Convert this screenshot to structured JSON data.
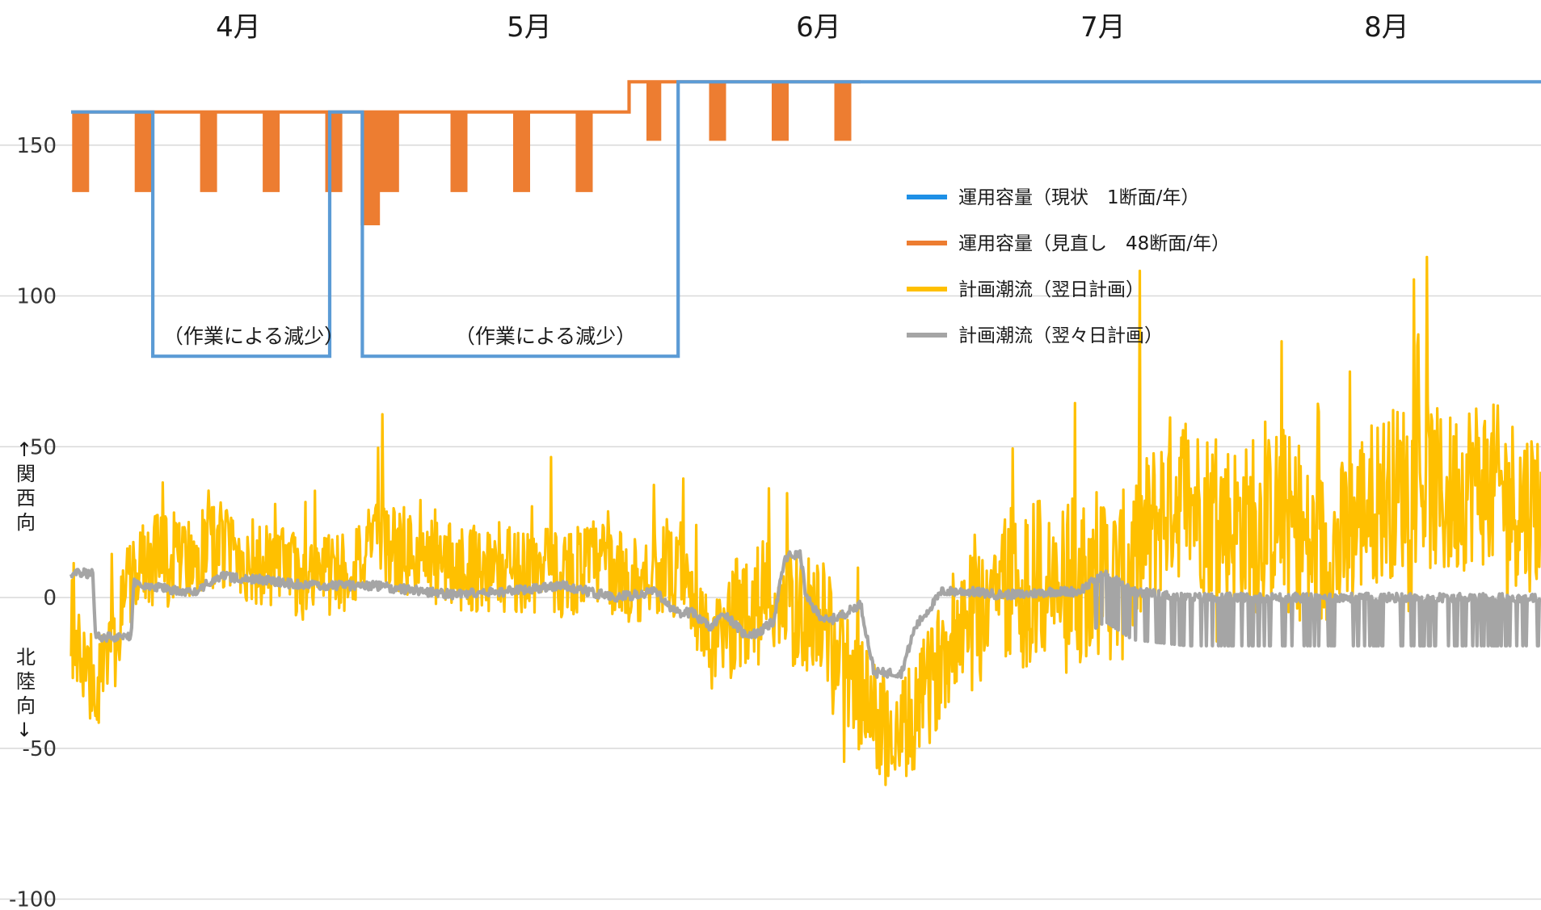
{
  "chart_data": {
    "type": "line",
    "title": "",
    "months": [
      "4月",
      "5月",
      "6月",
      "7月",
      "8月"
    ],
    "yticks": [
      150,
      100,
      50,
      0,
      -50,
      -100
    ],
    "ylim": [
      -100,
      170
    ],
    "ylabel_upper": "↑関西向",
    "ylabel_lower": "北陸向↓",
    "grid": true,
    "legend_position": "upper-right",
    "series": [
      {
        "name": "運用容量（現状　1断面/年）",
        "color": "#5b9bd5",
        "style": "step",
        "points": [
          [
            0,
            161
          ],
          [
            30,
            161
          ],
          [
            30,
            80
          ],
          [
            95,
            80
          ],
          [
            95,
            161
          ],
          [
            107,
            161
          ],
          [
            107,
            80
          ],
          [
            223,
            80
          ],
          [
            223,
            171
          ],
          [
            540,
            171
          ]
        ]
      },
      {
        "name": "運用容量（見直し　48断面/年）",
        "color": "#ed7d31",
        "style": "step",
        "base": [
          [
            0,
            161
          ],
          [
            205,
            161
          ],
          [
            205,
            171
          ],
          [
            540,
            171
          ]
        ],
        "dips": [
          {
            "from": 1,
            "to": 7,
            "value": 135
          },
          {
            "from": 24,
            "to": 30,
            "value": 135
          },
          {
            "from": 48,
            "to": 54,
            "value": 135
          },
          {
            "from": 71,
            "to": 77,
            "value": 135
          },
          {
            "from": 94,
            "to": 100,
            "value": 135
          },
          {
            "from": 107,
            "to": 114,
            "value": 124
          },
          {
            "from": 114,
            "to": 121,
            "value": 135
          },
          {
            "from": 140,
            "to": 146,
            "value": 135
          },
          {
            "from": 163,
            "to": 169,
            "value": 135
          },
          {
            "from": 186,
            "to": 192,
            "value": 135
          },
          {
            "from": 212,
            "to": 217,
            "value": 152
          },
          {
            "from": 235,
            "to": 241,
            "value": 152
          },
          {
            "from": 258,
            "to": 264,
            "value": 152
          },
          {
            "from": 281,
            "to": 287,
            "value": 152
          }
        ]
      },
      {
        "name": "計画潮流（翌日計画）",
        "color": "#ffc000",
        "style": "noisy",
        "x": [
          0,
          5,
          10,
          15,
          20,
          25,
          30,
          40,
          55,
          70,
          85,
          100,
          115,
          130,
          150,
          165,
          180,
          195,
          205,
          215,
          225,
          235,
          245,
          255,
          265,
          275,
          285,
          295,
          305,
          315,
          325,
          335,
          345,
          355,
          365,
          375,
          385,
          395,
          405,
          415,
          425,
          435,
          445,
          455,
          465,
          475,
          485,
          495,
          505,
          515,
          525,
          535,
          540
        ],
        "y": [
          -10,
          -25,
          -28,
          -20,
          2,
          10,
          12,
          14,
          17,
          10,
          7,
          9,
          18,
          12,
          10,
          10,
          8,
          12,
          5,
          10,
          5,
          -18,
          -5,
          3,
          -5,
          -5,
          -25,
          -40,
          -48,
          -30,
          -10,
          0,
          5,
          5,
          2,
          10,
          5,
          20,
          35,
          30,
          25,
          22,
          30,
          15,
          15,
          30,
          35,
          40,
          32,
          40,
          35,
          30,
          32
        ]
      },
      {
        "name": "計画潮流（翌々日計画）",
        "color": "#a5a5a5",
        "style": "noisy",
        "x": [
          0,
          8,
          9,
          22,
          23,
          40,
          45,
          55,
          70,
          85,
          110,
          140,
          160,
          180,
          200,
          215,
          222,
          228,
          235,
          240,
          247,
          252,
          258,
          262,
          264,
          268,
          270,
          274,
          278,
          285,
          290,
          295,
          300,
          305,
          310,
          320,
          330,
          340,
          350,
          360,
          370,
          380,
          390,
          400,
          410,
          420,
          430,
          440,
          460,
          480,
          500,
          520,
          540
        ],
        "y": [
          8,
          8,
          -13,
          -13,
          5,
          2,
          2,
          7,
          6,
          4,
          4,
          1,
          2,
          4,
          0,
          2,
          -5,
          -5,
          -10,
          -5,
          -12,
          -12,
          -8,
          12,
          14,
          14,
          0,
          -5,
          -8,
          -5,
          -2,
          -25,
          -25,
          -25,
          -10,
          2,
          2,
          1,
          1,
          2,
          2,
          8,
          2,
          1,
          0,
          0,
          0,
          0,
          0,
          0,
          0,
          0,
          0
        ]
      }
    ],
    "annotations": [
      "（作業による減少）",
      "（作業による減少）"
    ]
  }
}
